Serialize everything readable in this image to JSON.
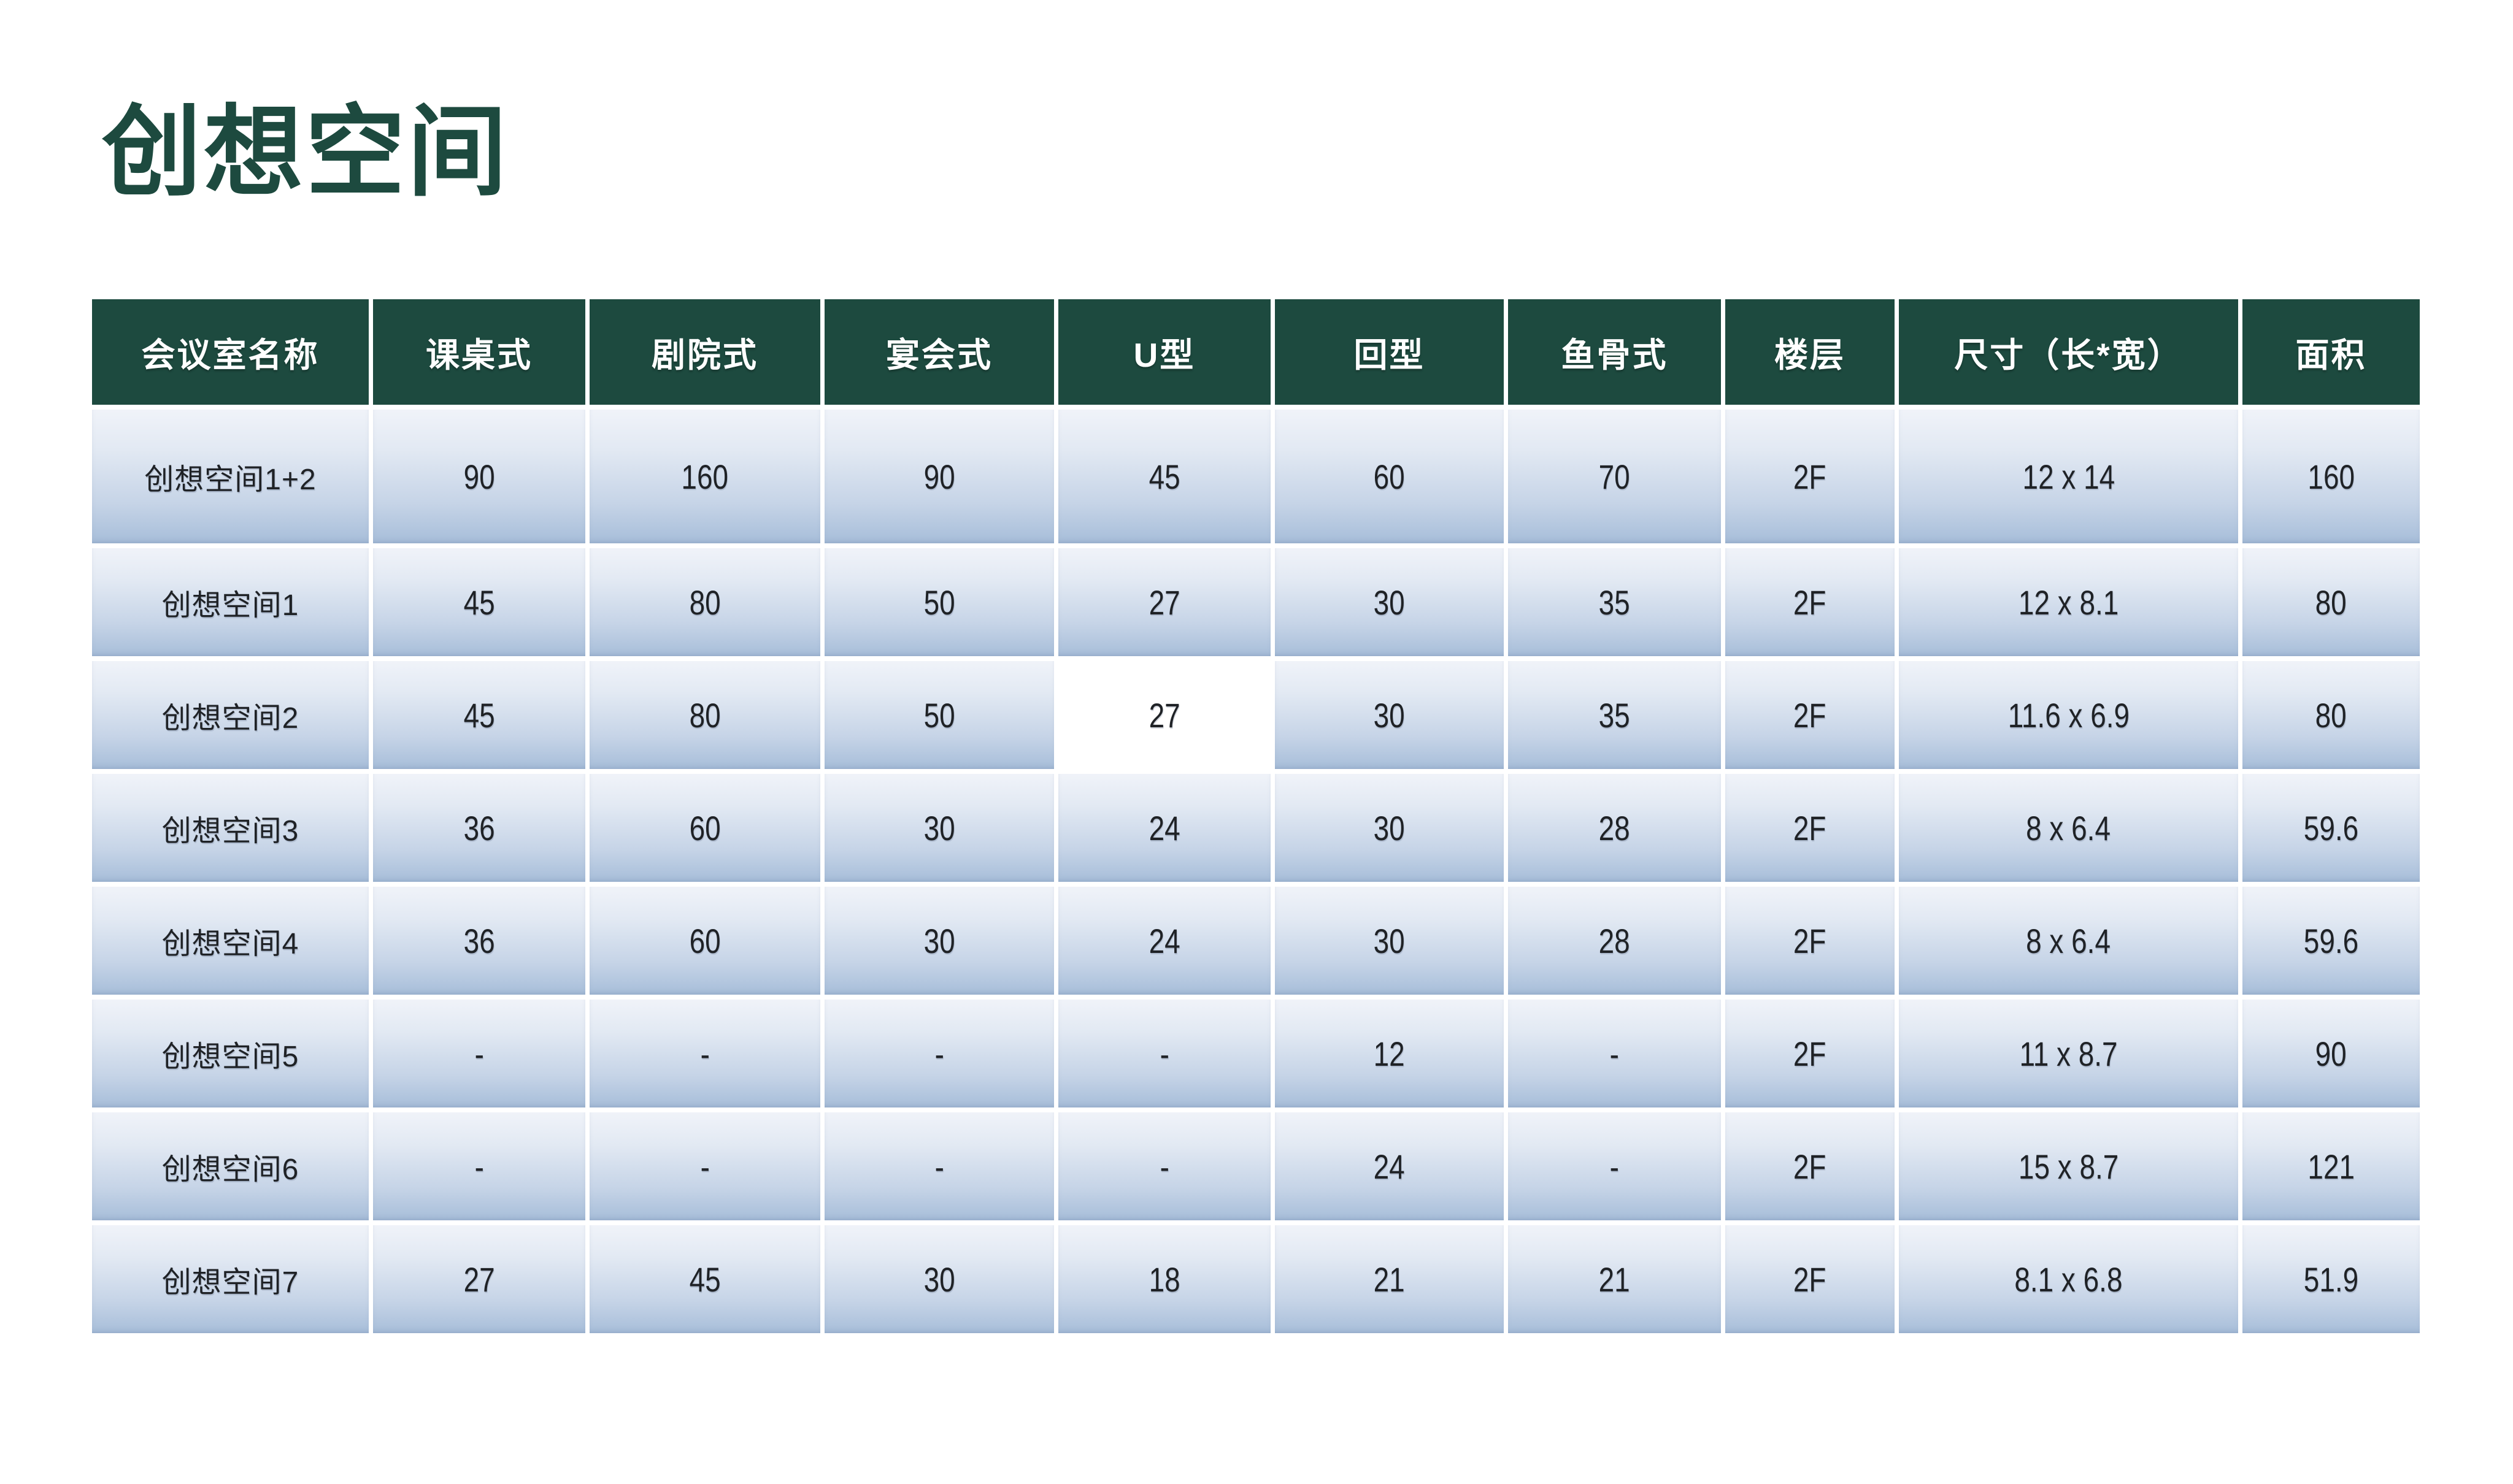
{
  "page": {
    "title": "创想空间"
  },
  "theme": {
    "title_color": "#1d4a3f",
    "header_bg": "#1d4a3f",
    "header_text_color": "#ffffff",
    "cell_gradient_top": "#f0f3f9",
    "cell_gradient_bottom": "#adc2dc",
    "highlight_cell_bg": "#ffffff",
    "cell_text_color": "#1f2226"
  },
  "table": {
    "columns": [
      "会议室名称",
      "课桌式",
      "剧院式",
      "宴会式",
      "U型",
      "回型",
      "鱼骨式",
      "楼层",
      "尺寸（长*宽）",
      "面积"
    ],
    "rows": [
      {
        "name": "创想空间1+2",
        "values": [
          "90",
          "160",
          "90",
          "45",
          "60",
          "70",
          "2F",
          "12 x 14",
          "160"
        ]
      },
      {
        "name": "创想空间1",
        "values": [
          "45",
          "80",
          "50",
          "27",
          "30",
          "35",
          "2F",
          "12 x 8.1",
          "80"
        ]
      },
      {
        "name": "创想空间2",
        "values": [
          "45",
          "80",
          "50",
          "27",
          "30",
          "35",
          "2F",
          "11.6 x 6.9",
          "80"
        ],
        "highlight_value_index": 3
      },
      {
        "name": "创想空间3",
        "values": [
          "36",
          "60",
          "30",
          "24",
          "30",
          "28",
          "2F",
          "8 x 6.4",
          "59.6"
        ]
      },
      {
        "name": "创想空间4",
        "values": [
          "36",
          "60",
          "30",
          "24",
          "30",
          "28",
          "2F",
          "8 x 6.4",
          "59.6"
        ]
      },
      {
        "name": "创想空间5",
        "values": [
          "-",
          "-",
          "-",
          "-",
          "12",
          "-",
          "2F",
          "11 x 8.7",
          "90"
        ]
      },
      {
        "name": "创想空间6",
        "values": [
          "-",
          "-",
          "-",
          "-",
          "24",
          "-",
          "2F",
          "15 x 8.7",
          "121"
        ]
      },
      {
        "name": "创想空间7",
        "values": [
          "27",
          "45",
          "30",
          "18",
          "21",
          "21",
          "2F",
          "8.1 x 6.8",
          "51.9"
        ]
      }
    ]
  }
}
